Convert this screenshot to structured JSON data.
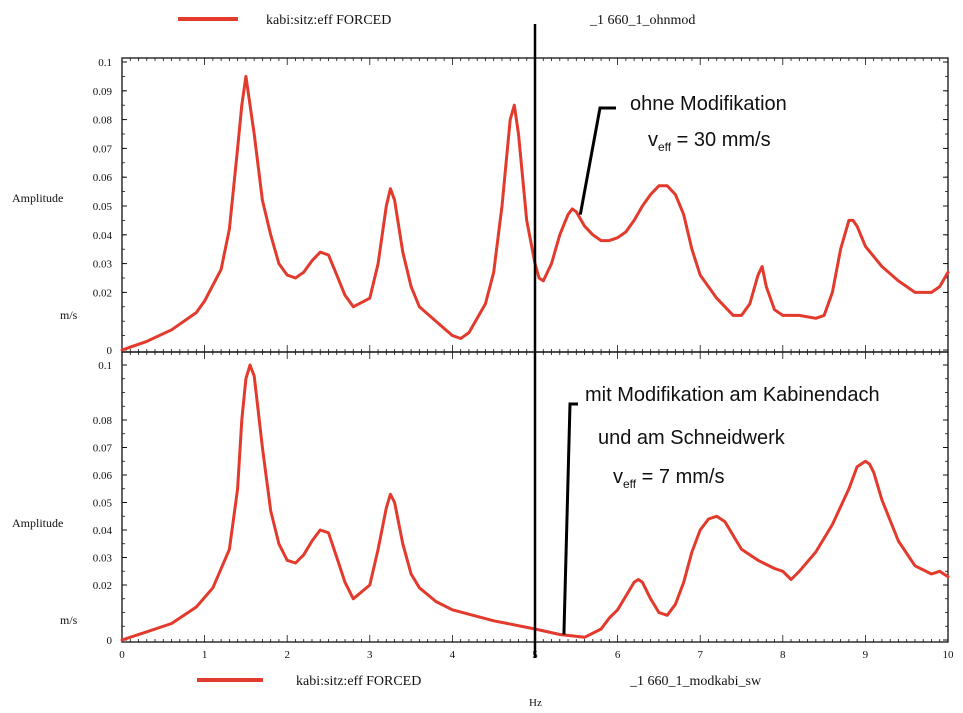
{
  "colors": {
    "series": "#e23a2c",
    "axis": "#111111",
    "marker": "#000000"
  },
  "chart_data": [
    {
      "type": "line",
      "legend": {
        "label": "kabi:sitz:eff FORCED",
        "case": "_1 660_1_ohnmod"
      },
      "ylabel": "Amplitude",
      "yunit": "m/s",
      "xlim": [
        0,
        10
      ],
      "ylim": [
        0,
        0.1
      ],
      "yticks": [
        "0",
        "0.02",
        "0.03",
        "0.04",
        "0.05",
        "0.06",
        "0.07",
        "0.08",
        "0.09",
        "0.1"
      ],
      "marker_line_x": 5,
      "annotation": {
        "line1": "ohne Modifikation",
        "veff_symbol": "v",
        "veff_sub": "eff",
        "veff_value": " = 30 mm/s",
        "target_x": 5.5,
        "target_y": 0.047
      },
      "x": [
        0,
        0.3,
        0.6,
        0.9,
        1.0,
        1.2,
        1.3,
        1.4,
        1.45,
        1.5,
        1.6,
        1.7,
        1.8,
        1.9,
        2.0,
        2.1,
        2.2,
        2.3,
        2.4,
        2.5,
        2.6,
        2.7,
        2.8,
        3.0,
        3.1,
        3.2,
        3.25,
        3.3,
        3.4,
        3.5,
        3.6,
        3.8,
        4.0,
        4.1,
        4.2,
        4.4,
        4.5,
        4.6,
        4.7,
        4.75,
        4.8,
        4.9,
        5.0,
        5.05,
        5.1,
        5.2,
        5.3,
        5.4,
        5.45,
        5.5,
        5.6,
        5.7,
        5.8,
        5.9,
        6.0,
        6.1,
        6.2,
        6.3,
        6.4,
        6.5,
        6.6,
        6.7,
        6.8,
        6.9,
        7.0,
        7.2,
        7.4,
        7.5,
        7.6,
        7.7,
        7.75,
        7.8,
        7.9,
        8.0,
        8.2,
        8.4,
        8.5,
        8.6,
        8.7,
        8.8,
        8.85,
        8.9,
        9.0,
        9.2,
        9.4,
        9.6,
        9.8,
        9.9,
        10.0
      ],
      "y": [
        0.0,
        0.003,
        0.007,
        0.013,
        0.017,
        0.028,
        0.042,
        0.07,
        0.085,
        0.095,
        0.075,
        0.052,
        0.04,
        0.03,
        0.026,
        0.025,
        0.027,
        0.031,
        0.034,
        0.033,
        0.026,
        0.019,
        0.015,
        0.018,
        0.03,
        0.05,
        0.056,
        0.052,
        0.034,
        0.022,
        0.015,
        0.01,
        0.005,
        0.004,
        0.006,
        0.016,
        0.027,
        0.05,
        0.08,
        0.085,
        0.075,
        0.045,
        0.03,
        0.025,
        0.024,
        0.03,
        0.04,
        0.047,
        0.049,
        0.048,
        0.043,
        0.04,
        0.038,
        0.038,
        0.039,
        0.041,
        0.045,
        0.05,
        0.054,
        0.057,
        0.057,
        0.054,
        0.047,
        0.035,
        0.026,
        0.018,
        0.012,
        0.012,
        0.016,
        0.026,
        0.029,
        0.022,
        0.014,
        0.012,
        0.012,
        0.011,
        0.012,
        0.02,
        0.035,
        0.045,
        0.045,
        0.043,
        0.036,
        0.029,
        0.024,
        0.02,
        0.02,
        0.022,
        0.027
      ]
    },
    {
      "type": "line",
      "legend": {
        "label": "kabi:sitz:eff FORCED",
        "case": "_1 660_1_modkabi_sw"
      },
      "ylabel": "Amplitude",
      "yunit": "m/s",
      "xlabel": "Hz",
      "xlim": [
        0,
        10
      ],
      "ylim": [
        0,
        0.1
      ],
      "xticks": [
        "0",
        "1",
        "2",
        "3",
        "4",
        "5",
        "6",
        "7",
        "8",
        "9",
        "10"
      ],
      "yticks": [
        "0",
        "0.02",
        "0.03",
        "0.04",
        "0.05",
        "0.06",
        "0.07",
        "0.08",
        "0.1"
      ],
      "marker_line_x": 5,
      "annotation": {
        "line1": "mit Modifikation am Kabinendach",
        "line2": "und am Schneidwerk",
        "veff_symbol": "v",
        "veff_sub": "eff",
        "veff_value": " = 7 mm/s",
        "target_x": 5.35,
        "target_y": 0.002
      },
      "x": [
        0,
        0.3,
        0.6,
        0.9,
        1.1,
        1.3,
        1.4,
        1.45,
        1.5,
        1.55,
        1.6,
        1.7,
        1.8,
        1.9,
        2.0,
        2.1,
        2.2,
        2.3,
        2.4,
        2.5,
        2.6,
        2.7,
        2.8,
        3.0,
        3.1,
        3.2,
        3.25,
        3.3,
        3.4,
        3.5,
        3.6,
        3.8,
        4.0,
        4.5,
        5.0,
        5.3,
        5.6,
        5.8,
        5.9,
        6.0,
        6.1,
        6.2,
        6.25,
        6.3,
        6.4,
        6.5,
        6.6,
        6.7,
        6.8,
        6.9,
        7.0,
        7.1,
        7.2,
        7.3,
        7.4,
        7.5,
        7.7,
        7.9,
        8.0,
        8.1,
        8.2,
        8.4,
        8.6,
        8.8,
        8.9,
        9.0,
        9.05,
        9.1,
        9.2,
        9.4,
        9.6,
        9.8,
        9.9,
        10.0
      ],
      "y": [
        0.0,
        0.003,
        0.006,
        0.012,
        0.019,
        0.033,
        0.055,
        0.08,
        0.095,
        0.1,
        0.096,
        0.07,
        0.047,
        0.035,
        0.029,
        0.028,
        0.031,
        0.036,
        0.04,
        0.039,
        0.03,
        0.021,
        0.015,
        0.02,
        0.033,
        0.048,
        0.053,
        0.05,
        0.035,
        0.024,
        0.019,
        0.014,
        0.011,
        0.007,
        0.004,
        0.002,
        0.001,
        0.004,
        0.008,
        0.011,
        0.016,
        0.021,
        0.022,
        0.021,
        0.015,
        0.01,
        0.009,
        0.013,
        0.021,
        0.032,
        0.04,
        0.044,
        0.045,
        0.043,
        0.038,
        0.033,
        0.029,
        0.026,
        0.025,
        0.022,
        0.025,
        0.032,
        0.042,
        0.055,
        0.063,
        0.065,
        0.064,
        0.061,
        0.051,
        0.036,
        0.027,
        0.024,
        0.025,
        0.023
      ]
    }
  ]
}
